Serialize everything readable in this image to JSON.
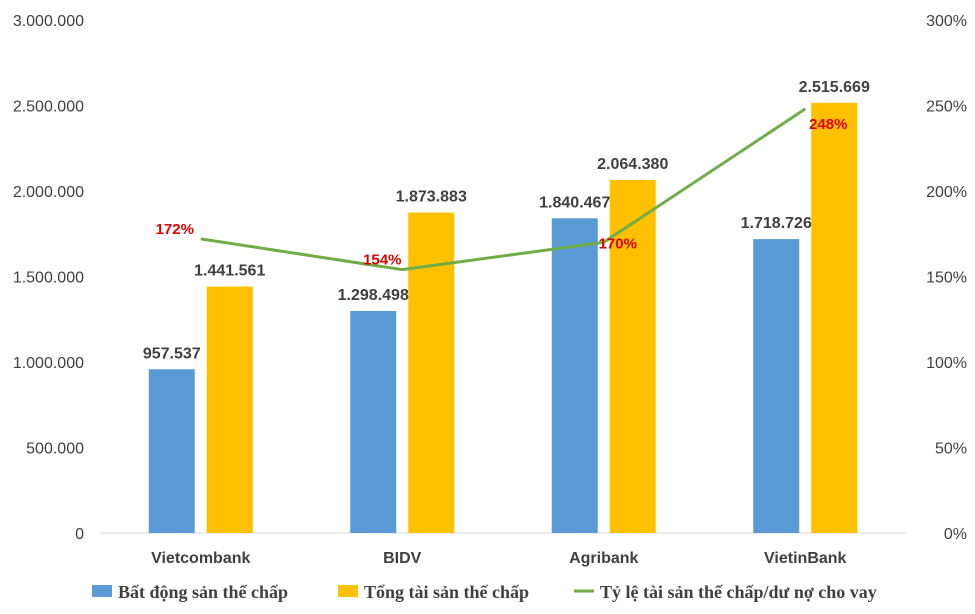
{
  "chart_data": {
    "type": "bar",
    "categories": [
      "Vietcombank",
      "BIDV",
      "Agribank",
      "VietinBank"
    ],
    "series": [
      {
        "name": "Bất động sản thế chấp",
        "values": [
          957537,
          1298498,
          1840467,
          1718726
        ],
        "labels": [
          "957.537",
          "1.298.498",
          "1.840.467",
          "1.718.726"
        ],
        "color": "#5b9bd5"
      },
      {
        "name": "Tổng tài sản thế chấp",
        "values": [
          1441561,
          1873883,
          2064380,
          2515669
        ],
        "labels": [
          "1.441.561",
          "1.873.883",
          "2.064.380",
          "2.515.669"
        ],
        "color": "#ffc000"
      },
      {
        "name": "Tỷ lệ tài sản thế chấp/dư nợ cho vay",
        "type": "line",
        "axis": "right",
        "values": [
          172,
          154,
          170,
          248
        ],
        "labels": [
          "172%",
          "154%",
          "170%",
          "248%"
        ],
        "color": "#70ad47",
        "label_color": "#e00000"
      }
    ],
    "ylim": [
      0,
      3000000
    ],
    "yticks": [
      0,
      500000,
      1000000,
      1500000,
      2000000,
      2500000,
      3000000
    ],
    "ytick_labels": [
      "0",
      "500.000",
      "1.000.000",
      "1.500.000",
      "2.000.000",
      "2.500.000",
      "3.000.000"
    ],
    "y2lim": [
      0,
      300
    ],
    "y2ticks": [
      0,
      50,
      100,
      150,
      200,
      250,
      300
    ],
    "y2tick_labels": [
      "0%",
      "50%",
      "100%",
      "150%",
      "200%",
      "250%",
      "300%"
    ],
    "grid": false,
    "legend_position": "bottom"
  }
}
